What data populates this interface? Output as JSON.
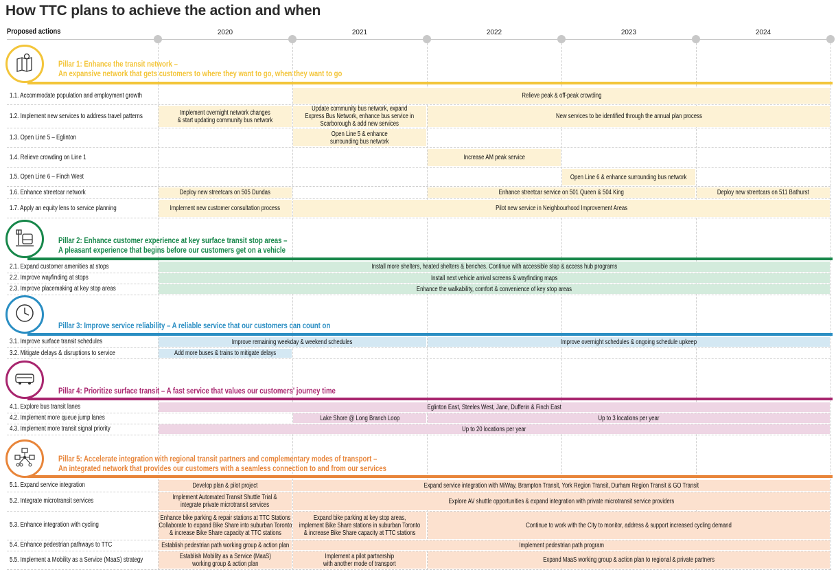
{
  "title": "How TTC plans to achieve the action and when",
  "column_header": "Proposed actions",
  "years": [
    "2020",
    "2021",
    "2022",
    "2023",
    "2024"
  ],
  "colors": {
    "axis": "#c8c8c8",
    "grid": "#cfcfcf"
  },
  "pillars": [
    {
      "id": "pillar-1",
      "icon": "map-pin-icon",
      "color": "#f3c53a",
      "bar_color": "#fdf2d5",
      "title_lines": [
        "Pillar 1: Enhance the transit network –",
        "An expansive network that gets customers to where they want to go, when they want to go"
      ],
      "actions": [
        {
          "label": "1.1. Accommodate population and employment growth",
          "bars": [
            {
              "start": 2021,
              "end": 2025,
              "text": "Relieve peak & off-peak crowding"
            }
          ]
        },
        {
          "label": "1.2. Implement new services to address travel patterns",
          "bars": [
            {
              "start": 2020,
              "end": 2021,
              "text": "Implement overnight network changes\n& start updating community bus network"
            },
            {
              "start": 2021,
              "end": 2022,
              "text": "Update community bus network, expand\nExpress Bus Network, enhance bus service in\nScarborough & add new services"
            },
            {
              "start": 2022,
              "end": 2025,
              "text": "New services to be identified through the annual plan process"
            }
          ]
        },
        {
          "label": "1.3. Open Line 5 – Eglinton",
          "bars": [
            {
              "start": 2021,
              "end": 2022,
              "text": "Open Line 5 & enhance\nsurrounding bus network"
            }
          ]
        },
        {
          "label": "1.4. Relieve crowding on Line 1",
          "bars": [
            {
              "start": 2022,
              "end": 2023,
              "text": "Increase AM peak service"
            }
          ]
        },
        {
          "label": "1.5. Open Line 6 – Finch West",
          "bars": [
            {
              "start": 2023,
              "end": 2024,
              "text": "Open Line 6 & enhance surrounding bus network"
            }
          ]
        },
        {
          "label": "1.6. Enhance streetcar network",
          "bars": [
            {
              "start": 2020,
              "end": 2021,
              "text": "Deploy new streetcars on 505 Dundas"
            },
            {
              "start": 2022,
              "end": 2024,
              "text": "Enhance streetcar service on 501 Queen & 504 King"
            },
            {
              "start": 2024,
              "end": 2025,
              "text": "Deploy new streetcars on 511 Bathurst"
            }
          ]
        },
        {
          "label": "1.7. Apply an equity lens to service planning",
          "bars": [
            {
              "start": 2020,
              "end": 2021,
              "text": "Implement new customer consultation process"
            },
            {
              "start": 2021,
              "end": 2025,
              "text": "Pilot new service in Neighbourhood Improvement Areas"
            }
          ]
        }
      ]
    },
    {
      "id": "pillar-2",
      "icon": "bus-stop-icon",
      "color": "#17874a",
      "bar_color": "#d3ebdc",
      "title_lines": [
        "Pillar 2: Enhance customer experience at key surface transit stop areas –",
        "A pleasant experience that begins before our customers get on a vehicle"
      ],
      "actions": [
        {
          "label": "2.1. Expand customer amenities at stops",
          "bars": [
            {
              "start": 2020,
              "end": 2025,
              "text": "Install more shelters, heated shelters & benches. Continue with accessible stop & access hub programs"
            }
          ]
        },
        {
          "label": "2.2. Improve wayfinding at stops",
          "bars": [
            {
              "start": 2020,
              "end": 2025,
              "text": "Install next vehicle arrival screens & wayfinding maps"
            }
          ]
        },
        {
          "label": "2.3. Improve placemaking at key stop areas",
          "bars": [
            {
              "start": 2020,
              "end": 2025,
              "text": "Enhance the walkability, comfort & convenience of key stop areas"
            }
          ]
        }
      ]
    },
    {
      "id": "pillar-3",
      "icon": "clock-icon",
      "color": "#2a8ec3",
      "bar_color": "#d4e8f3",
      "title_lines": [
        "Pillar 3: Improve service reliability – A reliable service that our customers can count on"
      ],
      "actions": [
        {
          "label": "3.1. Improve surface transit schedules",
          "bars": [
            {
              "start": 2020,
              "end": 2022,
              "text": "Improve remaining weekday & weekend schedules"
            },
            {
              "start": 2022,
              "end": 2025,
              "text": "Improve overnight schedules & ongoing schedule upkeep"
            }
          ]
        },
        {
          "label": "3.2. Mitigate delays & disruptions to service",
          "bars": [
            {
              "start": 2020,
              "end": 2021,
              "text": "Add more buses & trains to mitigate delays"
            }
          ]
        }
      ]
    },
    {
      "id": "pillar-4",
      "icon": "bus-icon",
      "color": "#a8256e",
      "bar_color": "#eed5e4",
      "title_lines": [
        "Pillar 4: Prioritize surface transit – A fast service that values our customers' journey time"
      ],
      "actions": [
        {
          "label": "4.1. Explore bus transit lanes",
          "bars": [
            {
              "start": 2020,
              "end": 2025,
              "text": "Eglinton East, Steeles West, Jane, Dufferin & Finch East"
            }
          ]
        },
        {
          "label": "4.2. Implement more queue jump lanes",
          "bars": [
            {
              "start": 2021,
              "end": 2022,
              "text": "Lake Shore @ Long Branch Loop"
            },
            {
              "start": 2022,
              "end": 2025,
              "text": "Up to 3 locations per year"
            }
          ]
        },
        {
          "label": "4.3. Implement more transit signal priority",
          "bars": [
            {
              "start": 2020,
              "end": 2025,
              "text": "Up to 20 locations per year"
            }
          ]
        }
      ]
    },
    {
      "id": "pillar-5",
      "icon": "multimodal-icon",
      "color": "#e8853a",
      "bar_color": "#fce1cf",
      "title_lines": [
        "Pillar 5: Accelerate integration with regional transit partners and complementary modes of transport –",
        "An integrated network that provides our customers with a seamless connection to and from our services"
      ],
      "actions": [
        {
          "label": "5.1. Expand service integration",
          "bars": [
            {
              "start": 2020,
              "end": 2021,
              "text": "Develop plan & pilot project"
            },
            {
              "start": 2021,
              "end": 2025,
              "text": "Expand service integration with MiWay, Brampton Transit, York Region Transit, Durham Region Transit & GO Transit"
            }
          ]
        },
        {
          "label": "5.2. Integrate microtransit services",
          "bars": [
            {
              "start": 2020,
              "end": 2021,
              "text": "Implement Automated Transit Shuttle Trial &\nintegrate private microtransit services"
            },
            {
              "start": 2021,
              "end": 2025,
              "text": "Explore AV shuttle opportunities & expand integration with private microtransit service providers"
            }
          ]
        },
        {
          "label": "5.3. Enhance integration with cycling",
          "bars": [
            {
              "start": 2020,
              "end": 2021,
              "text": "Enhance bike parking & repair stations at TTC Stations\nCollaborate to expand Bike Share into suburban Toronto\n& increase Bike Share capacity at TTC stations"
            },
            {
              "start": 2021,
              "end": 2022,
              "text": "Expand bike parking at key stop areas,\nimplement Bike Share stations in suburban Toronto\n& increase Bike Share capacity at TTC stations"
            },
            {
              "start": 2022,
              "end": 2025,
              "text": "Continue to work with the City to monitor, address & support increased cycling demand"
            }
          ]
        },
        {
          "label": "5.4. Enhance pedestrian pathways to TTC",
          "bars": [
            {
              "start": 2020,
              "end": 2021,
              "text": "Establish pedestrian path working group & action plan"
            },
            {
              "start": 2021,
              "end": 2025,
              "text": "Implement pedestrian path program"
            }
          ]
        },
        {
          "label": "5.5. Implement a Mobility as a Service (MaaS) strategy",
          "bars": [
            {
              "start": 2020,
              "end": 2021,
              "text": "Establish Mobility as a Service (MaaS)\nworking group & action plan"
            },
            {
              "start": 2021,
              "end": 2022,
              "text": "Implement a pilot partnership\nwith another mode of transport"
            },
            {
              "start": 2022,
              "end": 2025,
              "text": "Expand MaaS working group & action plan to regional & private partners"
            }
          ]
        }
      ]
    }
  ]
}
